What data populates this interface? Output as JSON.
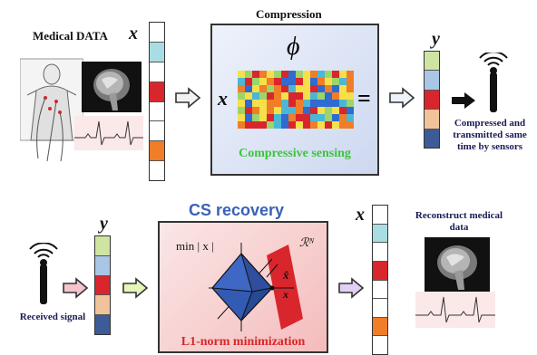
{
  "top": {
    "medical_label": "Medical DATA",
    "x_label": "x",
    "compression_title": "Compression",
    "phi_symbol": "ϕ",
    "x_in_box": "x",
    "equals": "=",
    "compressive_sensing": "Compressive sensing",
    "y_label": "y",
    "transmit_caption_1": "Compressed and",
    "transmit_caption_2": "transmitted same",
    "transmit_caption_3": "time by sensors"
  },
  "bottom": {
    "received_caption": "Received signal",
    "y_label": "y",
    "cs_recovery_title": "CS recovery",
    "min_expr": "min | x |",
    "space_label": "ℛᴺ",
    "x_hat": "x̂",
    "x_point": "x",
    "l1_caption": "L1-norm minimization",
    "x_label": "x",
    "reconstruct_caption_1": "Reconstruct medical",
    "reconstruct_caption_2": "data"
  },
  "colors": {
    "vector_x": [
      "#ffffff",
      "#a8dde3",
      "#ffffff",
      "#d9262c",
      "#ffffff",
      "#ffffff",
      "#f07d28",
      "#ffffff"
    ],
    "vector_y": [
      "#cfe4a3",
      "#a9c6e6",
      "#d9262c",
      "#f1c39a",
      "#3d5b96"
    ],
    "cs_title": "#3a62b4",
    "cs_green": "#3cc43c",
    "l1_red": "#d9262c",
    "matrix": [
      "#d9262c",
      "#f07d28",
      "#f6e04a",
      "#9bd56b",
      "#4bb7d6",
      "#2f6bd0"
    ]
  }
}
